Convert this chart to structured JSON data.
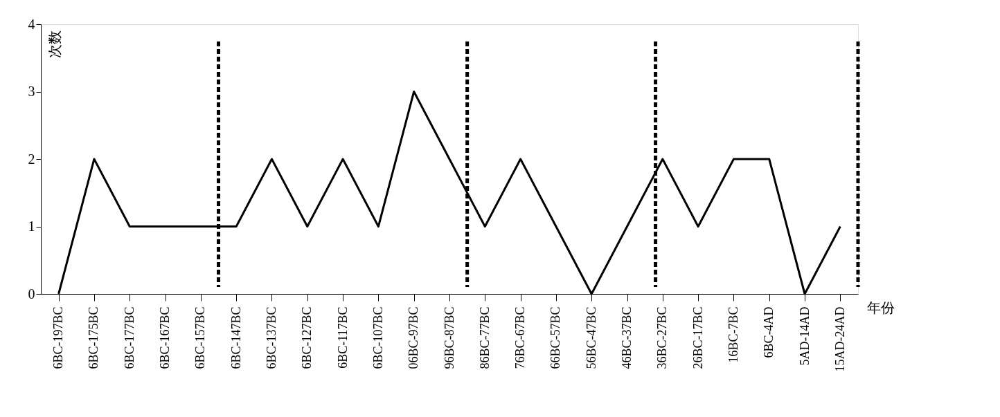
{
  "chart_data": {
    "type": "line",
    "categories": [
      "6BC-197BC",
      "6BC-175BC",
      "6BC-177BC",
      "6BC-167BC",
      "6BC-157BC",
      "6BC-147BC",
      "6BC-137BC",
      "6BC-127BC",
      "6BC-117BC",
      "6BC-107BC",
      "06BC-97BC",
      "96BC-87BC",
      "86BC-77BC",
      "76BC-67BC",
      "66BC-57BC",
      "56BC-47BC",
      "46BC-37BC",
      "36BC-27BC",
      "26BC-17BC",
      "16BC-7BC",
      "6BC-4AD",
      "5AD-14AD",
      "15AD-24AD"
    ],
    "series": [
      {
        "color": "#000000",
        "values": [
          0,
          2,
          1,
          1,
          1,
          1,
          2,
          1,
          2,
          1,
          3,
          2,
          1,
          2,
          1,
          0,
          1,
          2,
          1,
          2,
          2,
          0,
          1
        ]
      }
    ],
    "ylabel": "次数",
    "xlabel": "年份",
    "ylim": [
      0,
      4
    ],
    "yticks": [
      0,
      1,
      2,
      3,
      4
    ],
    "grid": false,
    "marker": "none",
    "line_style": "solid"
  }
}
